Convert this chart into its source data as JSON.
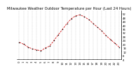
{
  "title": "Milwaukee Weather Outdoor Temperature per Hour (Last 24 Hours)",
  "hours": [
    0,
    1,
    2,
    3,
    4,
    5,
    6,
    7,
    8,
    9,
    10,
    11,
    12,
    13,
    14,
    15,
    16,
    17,
    18,
    19,
    20,
    21,
    22,
    23
  ],
  "temps": [
    22,
    20,
    17,
    15,
    14,
    13,
    16,
    18,
    24,
    30,
    36,
    42,
    47,
    50,
    51,
    49,
    46,
    42,
    38,
    34,
    29,
    25,
    21,
    17
  ],
  "line_color": "#cc0000",
  "marker_color": "#000000",
  "bg_color": "#ffffff",
  "grid_color": "#888888",
  "ylim_min": 4,
  "ylim_max": 56,
  "yticks": [
    4,
    8,
    12,
    16,
    20,
    24,
    28,
    32,
    36,
    40,
    44,
    48,
    52
  ],
  "ytick_labels": [
    "4",
    "8",
    "12",
    "16",
    "20",
    "24",
    "28",
    "32",
    "36",
    "40",
    "44",
    "48",
    "52"
  ],
  "title_fontsize": 3.8,
  "tick_fontsize": 2.8,
  "line_width": 0.55,
  "marker_size": 1.5
}
